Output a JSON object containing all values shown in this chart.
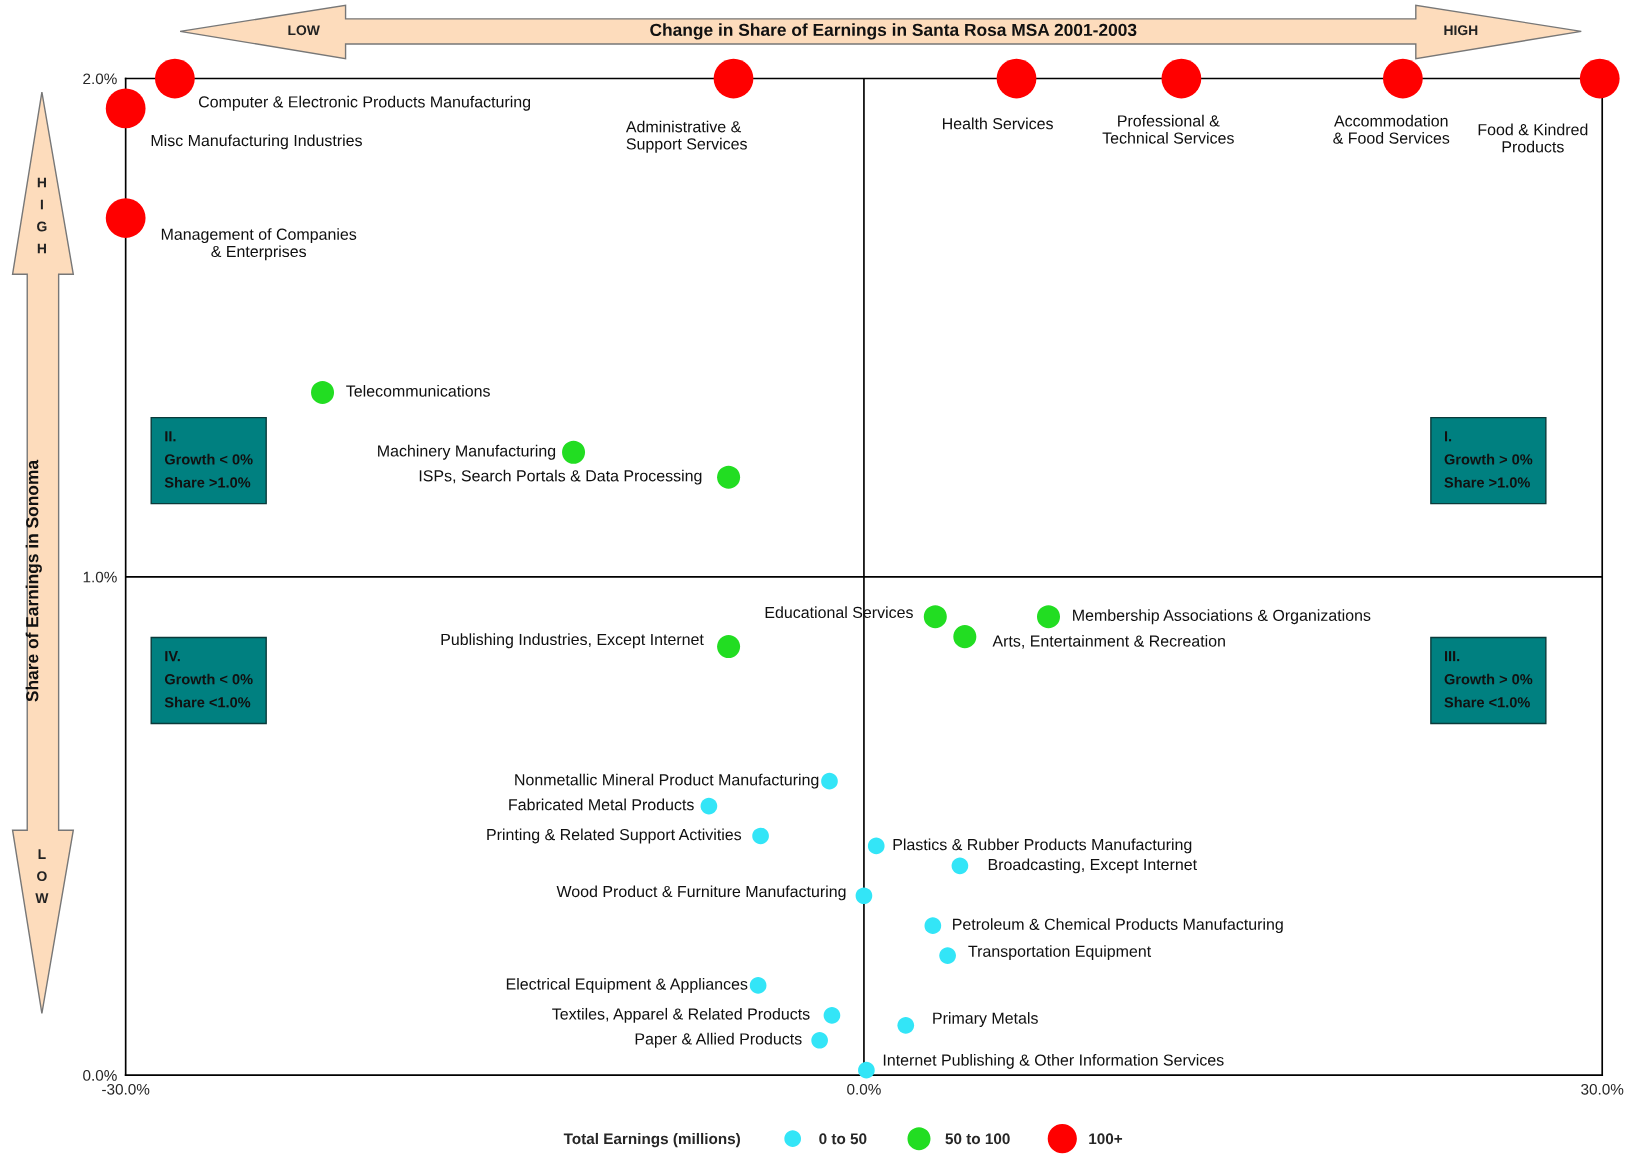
{
  "chart_data": {
    "type": "scatter",
    "xlabel": "Change in Share of Earnings in Santa Rosa MSA 2001-2003",
    "ylabel": "Share of Earnings in Sonoma",
    "legend_title": "Total Earnings (millions)",
    "legend": "bottom",
    "marker": "circle",
    "xlim": [
      -30,
      30
    ],
    "ylim": [
      0,
      2
    ],
    "xticks": [
      {
        "value": -30,
        "label": "-30.0%"
      },
      {
        "value": 0,
        "label": "0.0%"
      },
      {
        "value": 30,
        "label": "30.0%"
      }
    ],
    "yticks": [
      {
        "value": 0,
        "label": "0.0%"
      },
      {
        "value": 1,
        "label": "1.0%"
      },
      {
        "value": 2,
        "label": "2.0%"
      }
    ],
    "ref_lines": [
      {
        "axis": "x",
        "value": 0,
        "color": "#000000"
      },
      {
        "axis": "y",
        "value": 1,
        "color": "#000000"
      }
    ],
    "series": [
      {
        "name": "100+",
        "color": "#ff0000",
        "x": [
          -28.0,
          -30.0,
          -30.0,
          -5.3,
          6.2,
          12.9,
          21.9,
          29.9
        ],
        "values": [
          2.0,
          1.94,
          1.72,
          2.0,
          2.0,
          2.0,
          2.0,
          2.0
        ]
      },
      {
        "name": "50 to 100",
        "color": "#22dd22",
        "x": [
          -22.0,
          -11.8,
          -5.5,
          2.9,
          7.5,
          4.1,
          -5.5
        ],
        "values": [
          1.37,
          1.25,
          1.2,
          0.92,
          0.92,
          0.88,
          0.86
        ]
      },
      {
        "name": "0 to 50",
        "color": "#33e5f7",
        "x": [
          -1.4,
          -6.3,
          -4.2,
          0.5,
          3.9,
          0.0,
          2.8,
          3.4,
          -4.3,
          -1.3,
          1.7,
          -1.8,
          0.1
        ],
        "values": [
          0.59,
          0.54,
          0.48,
          0.46,
          0.42,
          0.36,
          0.3,
          0.24,
          0.18,
          0.12,
          0.1,
          0.07,
          0.01
        ]
      }
    ],
    "annotations": [
      {
        "text": "Computer & Electronic Products Manufacturing",
        "x": -28.0,
        "y": 2.0
      },
      {
        "text": "Misc Manufacturing Industries",
        "x": -30.0,
        "y": 1.94
      },
      {
        "text": "Management of Companies\n& Enterprises",
        "x": -30.0,
        "y": 1.72
      },
      {
        "text": "Administrative &\nSupport Services",
        "x": -5.3,
        "y": 2.0
      },
      {
        "text": "Health Services",
        "x": 6.2,
        "y": 2.0
      },
      {
        "text": "Professional &\nTechnical Services",
        "x": 12.9,
        "y": 2.0
      },
      {
        "text": "Accommodation\n& Food Services",
        "x": 21.9,
        "y": 2.0
      },
      {
        "text": "Food & Kindred\nProducts",
        "x": 29.9,
        "y": 2.0
      },
      {
        "text": "Telecommunications",
        "x": -22.0,
        "y": 1.37
      },
      {
        "text": "Machinery Manufacturing",
        "x": -11.8,
        "y": 1.25
      },
      {
        "text": "ISPs, Search Portals & Data Processing",
        "x": -5.5,
        "y": 1.2
      },
      {
        "text": "Educational Services",
        "x": 2.9,
        "y": 0.92
      },
      {
        "text": "Membership Associations & Organizations",
        "x": 7.5,
        "y": 0.92
      },
      {
        "text": "Arts, Entertainment & Recreation",
        "x": 4.1,
        "y": 0.88
      },
      {
        "text": "Publishing Industries, Except Internet",
        "x": -5.5,
        "y": 0.86
      },
      {
        "text": "Nonmetallic Mineral Product Manufacturing",
        "x": -1.4,
        "y": 0.59
      },
      {
        "text": "Fabricated Metal Products",
        "x": -6.3,
        "y": 0.54
      },
      {
        "text": "Printing & Related Support Activities",
        "x": -4.2,
        "y": 0.48
      },
      {
        "text": "Plastics & Rubber Products Manufacturing",
        "x": 0.5,
        "y": 0.46
      },
      {
        "text": "Broadcasting, Except Internet",
        "x": 3.9,
        "y": 0.42
      },
      {
        "text": "Wood Product & Furniture Manufacturing",
        "x": 0.0,
        "y": 0.36
      },
      {
        "text": "Petroleum & Chemical Products Manufacturing",
        "x": 2.8,
        "y": 0.3
      },
      {
        "text": "Transportation Equipment",
        "x": 3.4,
        "y": 0.24
      },
      {
        "text": "Electrical Equipment & Appliances",
        "x": -4.3,
        "y": 0.18
      },
      {
        "text": "Textiles, Apparel & Related Products",
        "x": -1.3,
        "y": 0.12
      },
      {
        "text": "Primary Metals",
        "x": 1.7,
        "y": 0.1
      },
      {
        "text": "Paper & Allied Products",
        "x": -1.8,
        "y": 0.07
      },
      {
        "text": "Internet Publishing & Other Information Services",
        "x": 0.1,
        "y": 0.01
      },
      "II.\nGrowth < 0%\nShare >1.0%",
      "I.\nGrowth > 0%\nShare >1.0%",
      "IV.\nGrowth < 0%\nShare <1.0%",
      "III.\nGrowth > 0%\nShare <1.0%",
      "LOW",
      "HIGH",
      "HIGH",
      "LOW"
    ]
  }
}
